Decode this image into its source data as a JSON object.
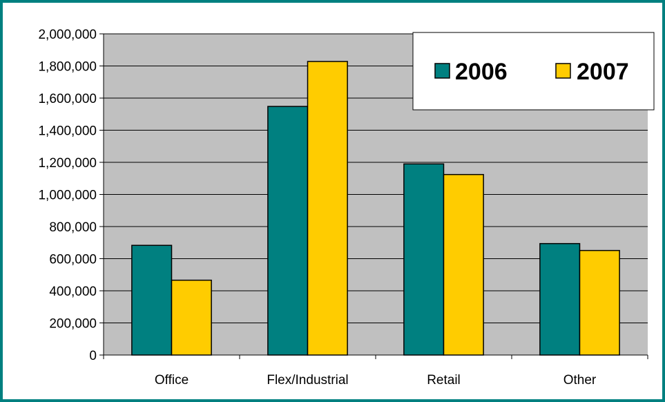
{
  "chart_data": {
    "type": "bar",
    "title": "",
    "xlabel": "",
    "ylabel": "",
    "categories": [
      "Office",
      "Flex/Industrial",
      "Retail",
      "Other"
    ],
    "series": [
      {
        "name": "2006",
        "values": [
          683000,
          1548000,
          1190000,
          694000
        ],
        "color": "#008080"
      },
      {
        "name": "2007",
        "values": [
          466000,
          1828000,
          1124000,
          651000
        ],
        "color": "#FFCC00"
      }
    ],
    "ylim": [
      0,
      2000000
    ],
    "yticks": [
      "0",
      "200,000",
      "400,000",
      "600,000",
      "800,000",
      "1,000,000",
      "1,200,000",
      "1,400,000",
      "1,600,000",
      "1,800,000",
      "2,000,000"
    ],
    "grid": true,
    "plot_background": "#C0C0C0",
    "frame_color": "#008080",
    "legend_position": "top-right"
  }
}
